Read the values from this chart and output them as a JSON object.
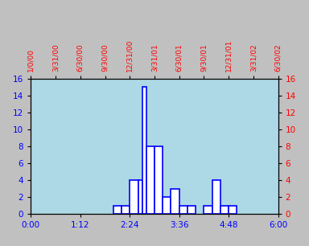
{
  "bg_color": "#add8e6",
  "fig_bg_color": "#c0c0c0",
  "bar_fill": "white",
  "bar_edge_color": "blue",
  "bar_edge_width": 1.2,
  "ylim": [
    0,
    16
  ],
  "yticks": [
    0,
    2,
    4,
    6,
    8,
    10,
    12,
    14,
    16
  ],
  "xlim_minutes": [
    0,
    360
  ],
  "bottom_xtick_labels": [
    "0:00",
    "1:12",
    "2:24",
    "3:36",
    "4:48",
    "6:00"
  ],
  "bottom_xtick_positions": [
    0,
    72,
    144,
    216,
    288,
    360
  ],
  "top_xtick_labels": [
    "1/0/00",
    "3/31/00",
    "6/30/00",
    "9/30/00",
    "12/31/00",
    "3/31/01",
    "6/30/01",
    "9/30/01",
    "12/31/01",
    "3/31/02",
    "6/30/02"
  ],
  "top_xtick_positions": [
    0,
    36,
    72,
    108,
    144,
    180,
    216,
    252,
    288,
    324,
    360
  ],
  "bar_positions_minutes": [
    120,
    132,
    144,
    156,
    162,
    168,
    180,
    192,
    204,
    216,
    228,
    252,
    264,
    276,
    288
  ],
  "bar_widths_minutes": [
    12,
    12,
    12,
    6,
    6,
    12,
    12,
    12,
    12,
    12,
    12,
    12,
    12,
    12,
    12
  ],
  "bar_heights": [
    1,
    1,
    4,
    4,
    15,
    8,
    8,
    2,
    3,
    1,
    1,
    1,
    4,
    1,
    1
  ],
  "left_tick_color": "blue",
  "right_tick_color": "red",
  "top_tick_color": "red",
  "bottom_tick_color": "blue",
  "tick_fontsize": 7.5,
  "top_tick_fontsize": 6.5
}
